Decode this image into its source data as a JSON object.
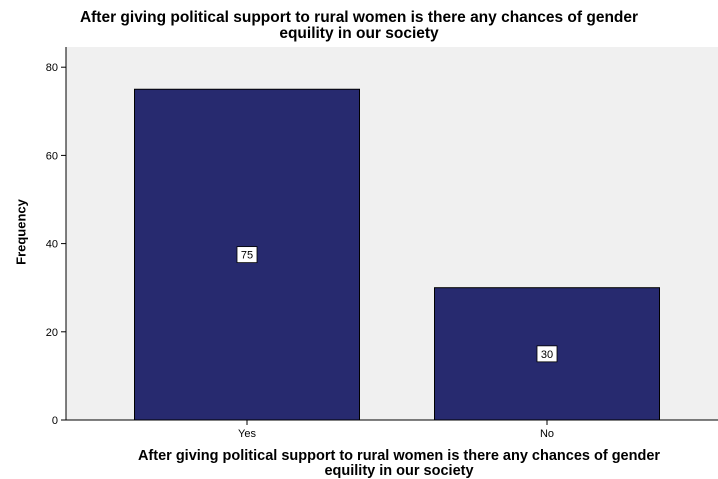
{
  "chart_data": {
    "type": "bar",
    "title": "After giving political support to rural women is there any chances of gender equility in our society",
    "title_lines": [
      "After giving political support to rural women is there any chances of gender",
      "equility in our society"
    ],
    "xlabel": "After giving political support to rural women is there any chances of gender equility in our society",
    "xlabel_lines": [
      "After giving political support to rural women is there any chances of gender",
      "equility in our society"
    ],
    "ylabel": "Frequency",
    "categories": [
      "Yes",
      "No"
    ],
    "values": [
      75,
      30
    ],
    "data_labels": [
      "75",
      "30"
    ],
    "ylim": [
      0,
      84
    ],
    "yticks": [
      0,
      20,
      40,
      60,
      80
    ],
    "grid": false,
    "legend": "none",
    "colors": {
      "bar_fill": "#272a6f",
      "bar_stroke": "#000000",
      "plot_background": "#f0f0f0",
      "axis": "#000000"
    }
  }
}
